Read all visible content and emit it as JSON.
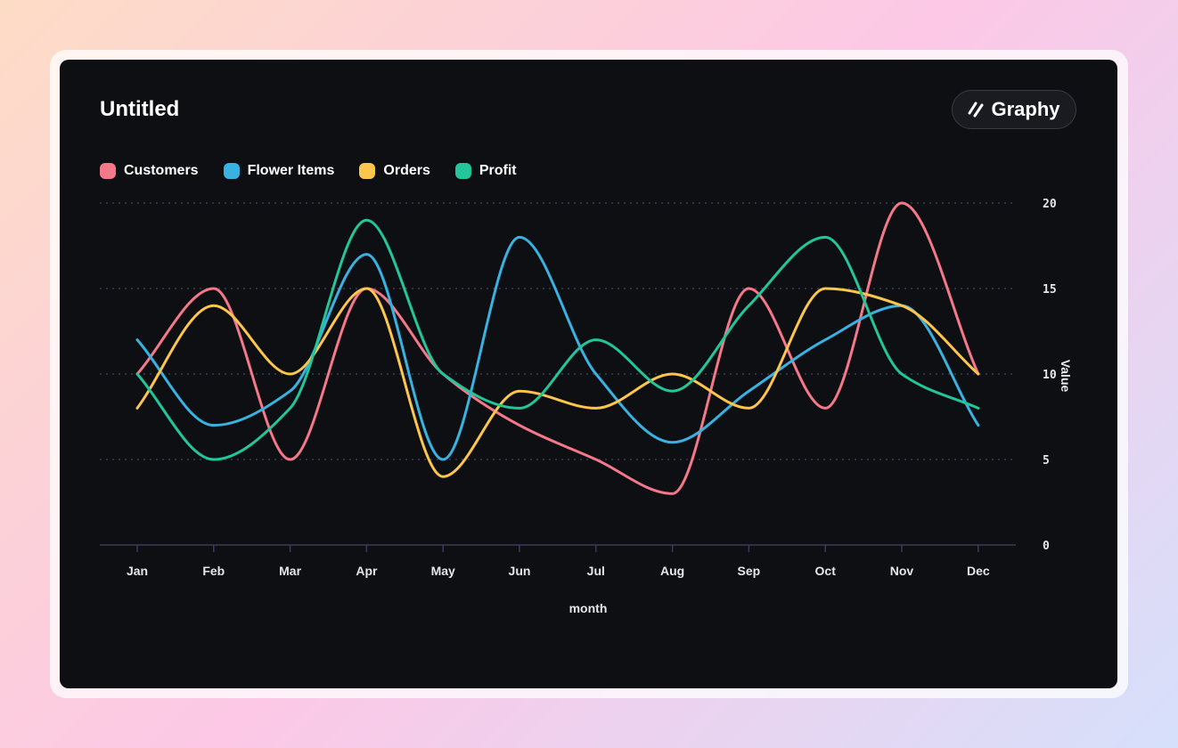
{
  "page": {
    "title": "Untitled",
    "brand": "Graphy"
  },
  "chart_data": {
    "type": "line",
    "title": "Untitled",
    "xlabel": "month",
    "ylabel": "Value",
    "ylim": [
      0,
      20
    ],
    "yticks": [
      0,
      5,
      10,
      15,
      20
    ],
    "grid": true,
    "legend_position": "top-left",
    "categories": [
      "Jan",
      "Feb",
      "Mar",
      "Apr",
      "May",
      "Jun",
      "Jul",
      "Aug",
      "Sep",
      "Oct",
      "Nov",
      "Dec"
    ],
    "series": [
      {
        "name": "Customers",
        "color": "#f4788a",
        "values": [
          10,
          15,
          5,
          15,
          10,
          7,
          5,
          3,
          15,
          8,
          20,
          10
        ]
      },
      {
        "name": "Flower Items",
        "color": "#38b2e0",
        "values": [
          12,
          7,
          9,
          17,
          5,
          18,
          10,
          6,
          9,
          12,
          14,
          7
        ]
      },
      {
        "name": "Orders",
        "color": "#fcc54c",
        "values": [
          8,
          14,
          10,
          15,
          4,
          9,
          8,
          10,
          8,
          15,
          14,
          10
        ]
      },
      {
        "name": "Profit",
        "color": "#22c69a",
        "values": [
          10,
          5,
          8,
          19,
          10,
          8,
          12,
          9,
          14,
          18,
          10,
          8
        ]
      }
    ]
  }
}
